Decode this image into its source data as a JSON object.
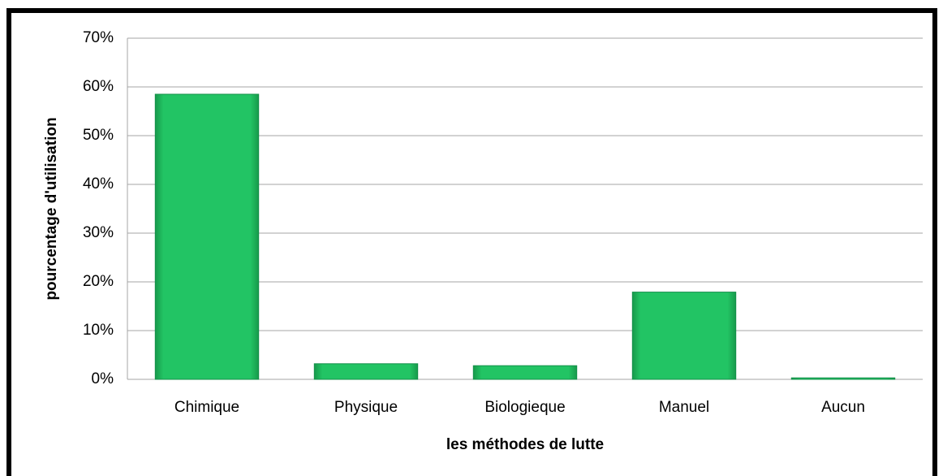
{
  "chart_data": {
    "type": "bar",
    "categories": [
      "Chimique",
      "Physique",
      "Biologieque",
      "Manuel",
      "Aucun"
    ],
    "values": [
      58.5,
      3.2,
      2.8,
      17.9,
      0.3
    ],
    "color": "#1fbf5e",
    "xlabel": "les méthodes de lutte",
    "ylabel": "pourcentage d'utilisation",
    "ylim": [
      0,
      70
    ],
    "yticks": [
      {
        "value": 0,
        "label": "0%"
      },
      {
        "value": 10,
        "label": "10%"
      },
      {
        "value": 20,
        "label": "20%"
      },
      {
        "value": 30,
        "label": "30%"
      },
      {
        "value": 40,
        "label": "40%"
      },
      {
        "value": 50,
        "label": "50%"
      },
      {
        "value": 60,
        "label": "60%"
      },
      {
        "value": 70,
        "label": "70%"
      }
    ],
    "grid": true
  }
}
